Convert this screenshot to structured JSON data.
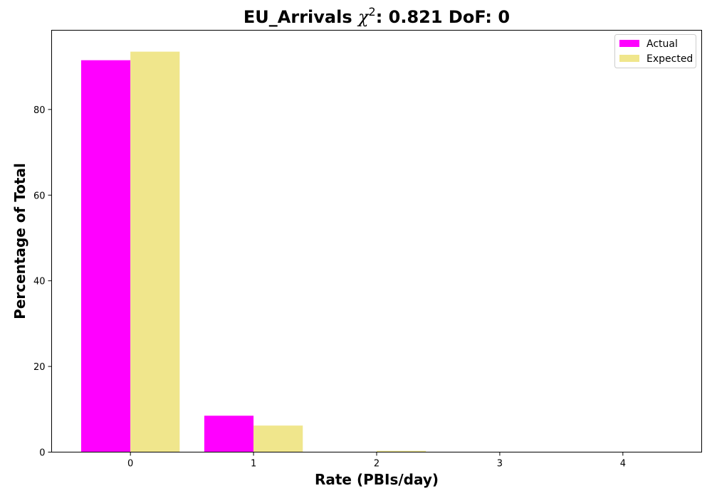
{
  "chart_data": {
    "type": "bar",
    "title": {
      "prefix": "EU_Arrivals ",
      "chi_symbol": "χ",
      "chi_exponent": "2",
      "suffix": ": 0.821 DoF: 0"
    },
    "xlabel": "Rate (PBIs/day)",
    "ylabel": "Percentage of Total",
    "categories": [
      "0",
      "1",
      "2",
      "3",
      "4"
    ],
    "x_values": [
      0,
      1,
      2,
      3,
      4
    ],
    "series": [
      {
        "name": "Actual",
        "color": "#ff00ff",
        "values": [
          91.5,
          8.5,
          0,
          0,
          0
        ]
      },
      {
        "name": "Expected",
        "color": "#f0e68c",
        "values": [
          93.5,
          6.2,
          0.3,
          0.01,
          0
        ]
      }
    ],
    "xlim": [
      -0.64,
      4.64
    ],
    "ylim": [
      0,
      98.5
    ],
    "yticks": [
      0,
      20,
      40,
      60,
      80
    ],
    "grid": false,
    "legend_position": "top-right"
  }
}
